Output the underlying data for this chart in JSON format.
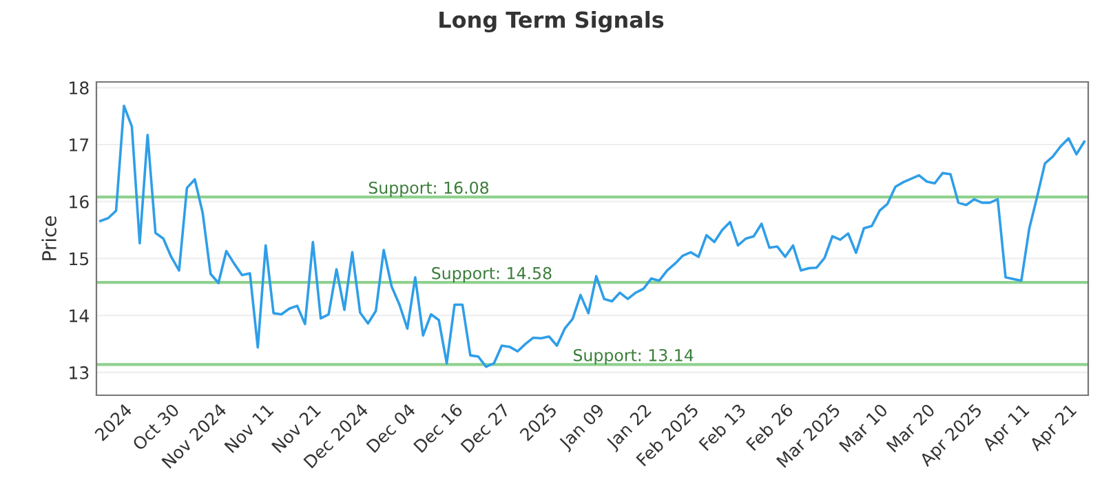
{
  "chart_data": {
    "type": "line",
    "title": "Long Term Signals",
    "ylabel": "Price",
    "categories": [
      null,
      null,
      null,
      "2024",
      null,
      null,
      null,
      null,
      null,
      "Oct 30",
      null,
      null,
      null,
      null,
      null,
      "Nov 2024",
      null,
      null,
      null,
      null,
      null,
      "Nov 11",
      null,
      null,
      null,
      null,
      null,
      "Nov 21",
      null,
      null,
      null,
      null,
      null,
      "Dec 2024",
      null,
      null,
      null,
      null,
      null,
      "Dec 04",
      null,
      null,
      null,
      null,
      null,
      "Dec 16",
      null,
      null,
      null,
      null,
      null,
      "Dec 27",
      null,
      null,
      null,
      null,
      null,
      "2025",
      null,
      null,
      null,
      null,
      null,
      "Jan 09",
      null,
      null,
      null,
      null,
      null,
      "Jan 22",
      null,
      null,
      null,
      null,
      null,
      "Feb 2025",
      null,
      null,
      null,
      null,
      null,
      "Feb 13",
      null,
      null,
      null,
      null,
      null,
      "Feb 26",
      null,
      null,
      null,
      null,
      null,
      "Mar 2025",
      null,
      null,
      null,
      null,
      null,
      "Mar 10",
      null,
      null,
      null,
      null,
      null,
      "Mar 20",
      null,
      null,
      null,
      null,
      null,
      "Apr 2025",
      null,
      null,
      null,
      null,
      null,
      "Apr 11",
      null,
      null,
      null,
      null,
      null,
      "Apr 21",
      null,
      null
    ],
    "series": [
      {
        "color": "#2f9ee8",
        "values": [
          15.66,
          15.71,
          15.84,
          17.68,
          17.32,
          15.27,
          17.17,
          15.45,
          15.35,
          15.03,
          14.79,
          16.24,
          16.39,
          15.8,
          14.73,
          14.57,
          15.13,
          14.91,
          14.71,
          14.74,
          13.44,
          15.23,
          14.04,
          14.02,
          14.12,
          14.17,
          13.85,
          15.29,
          13.95,
          14.02,
          14.81,
          14.1,
          15.11,
          14.05,
          13.86,
          14.08,
          15.15,
          14.51,
          14.19,
          13.77,
          14.67,
          13.65,
          14.02,
          13.92,
          13.16,
          14.19,
          14.19,
          13.3,
          13.28,
          13.1,
          13.16,
          13.47,
          13.45,
          13.37,
          13.5,
          13.61,
          13.6,
          13.63,
          13.47,
          13.77,
          13.94,
          14.36,
          14.04,
          14.69,
          14.29,
          14.25,
          14.4,
          14.29,
          14.4,
          14.47,
          14.65,
          14.61,
          14.79,
          14.91,
          15.05,
          15.11,
          15.03,
          15.41,
          15.29,
          15.5,
          15.64,
          15.23,
          15.35,
          15.39,
          15.61,
          15.19,
          15.21,
          15.03,
          15.23,
          14.79,
          14.83,
          14.84,
          15.01,
          15.39,
          15.33,
          15.44,
          15.1,
          15.53,
          15.57,
          15.84,
          15.96,
          16.26,
          16.34,
          16.4,
          16.46,
          16.35,
          16.32,
          16.5,
          16.48,
          15.98,
          15.94,
          16.04,
          15.98,
          15.98,
          16.04,
          14.67,
          14.64,
          14.61,
          15.52,
          16.08,
          16.67,
          16.79,
          16.97,
          17.11,
          16.83,
          17.05
        ]
      }
    ],
    "ylim": [
      12.6,
      18.1
    ],
    "yticks": [
      13,
      14,
      15,
      16,
      17,
      18
    ],
    "grid": "y",
    "legend": false,
    "marker": "none",
    "line_style": "solid",
    "ref_lines": [
      {
        "axis": "y",
        "value": 16.08,
        "label": "Support: 16.08",
        "color": "#8fd18f"
      },
      {
        "axis": "y",
        "value": 14.58,
        "label": "Support: 14.58",
        "color": "#8fd18f"
      },
      {
        "axis": "y",
        "value": 13.14,
        "label": "Support: 13.14",
        "color": "#8fd18f"
      }
    ]
  }
}
